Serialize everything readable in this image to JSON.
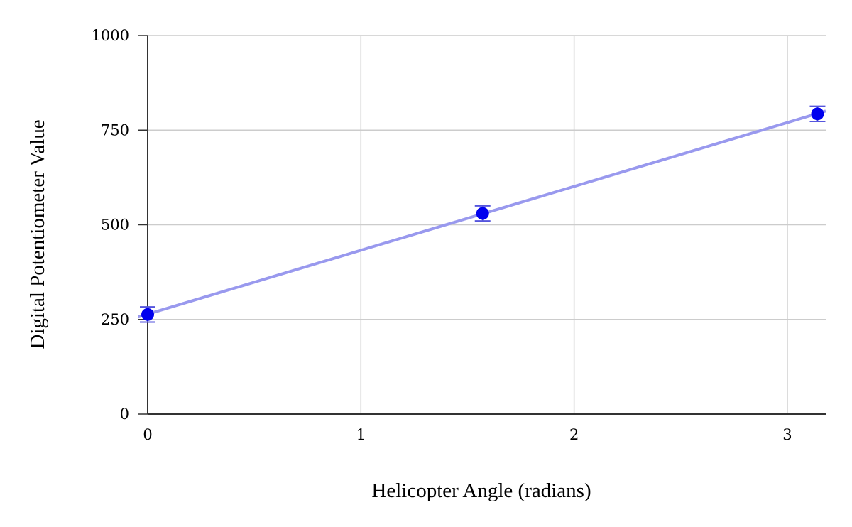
{
  "chart_data": {
    "type": "scatter",
    "title": "",
    "xlabel": "Helicopter Angle (radians)",
    "ylabel": "Digital Potentiometer Value",
    "xlim": [
      0,
      3.18
    ],
    "ylim": [
      0,
      1000
    ],
    "x_ticks": [
      0,
      1,
      2,
      3
    ],
    "x_tick_labels": [
      "0",
      "1",
      "2",
      "3"
    ],
    "y_ticks": [
      0,
      250,
      500,
      750,
      1000
    ],
    "y_tick_labels": [
      "0",
      "250",
      "500",
      "750",
      "1000"
    ],
    "grid": true,
    "legend": "none",
    "series": [
      {
        "x": [
          0,
          1.5708,
          3.1416
        ],
        "y": [
          263,
          530,
          793
        ],
        "error": [
          20,
          20,
          20
        ],
        "color": "#0000ee"
      }
    ],
    "trendline": {
      "type": "linear",
      "slope": 168.7,
      "intercept": 264,
      "color": "#9999ee"
    }
  }
}
